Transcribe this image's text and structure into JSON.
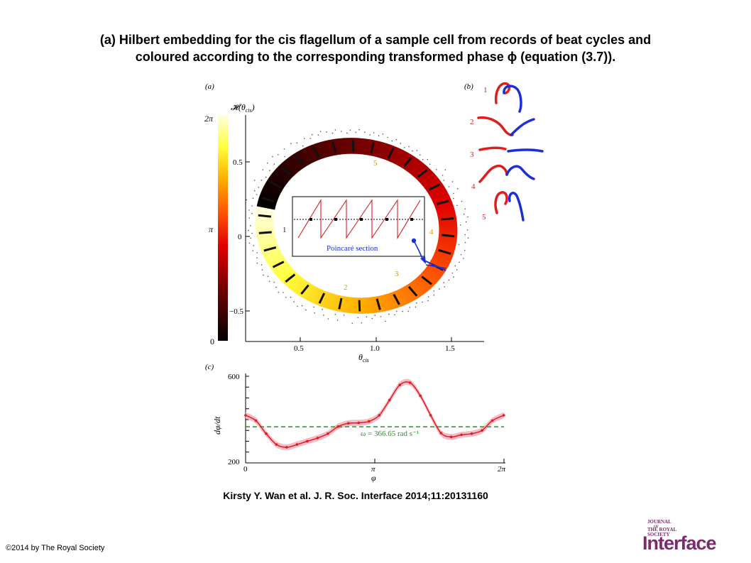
{
  "slide": {
    "title_line1": "(a) Hilbert embedding for the cis flagellum of a sample cell from records of beat cycles and",
    "title_line2": "coloured according to the corresponding transformed phase ϕ (equation (3.7)).",
    "citation": "Kirsty Y. Wan et al. J. R. Soc. Interface 2014;11:20131160",
    "copyright": "©2014 by The Royal Society"
  },
  "logo": {
    "line1": "JOURNAL",
    "line2": "OF",
    "line3": "THE ROYAL",
    "line4": "SOCIETY",
    "big": "Interface",
    "color": "#7b2a6e"
  },
  "panel_a": {
    "label": "(a)",
    "ylabel": "𝓗(θcis)",
    "ylabel_main": "𝓗(θ",
    "ylabel_sub": "cis",
    "ylabel_close": ")",
    "xlabel_main": "θ",
    "xlabel_sub": "cis",
    "yticks": [
      "0.5",
      "0",
      "−0.5"
    ],
    "xticks": [
      "0.5",
      "1.0",
      "1.5"
    ],
    "colorbar_ticks": [
      "2π",
      "π",
      "0"
    ],
    "segment_labels": [
      "1",
      "2",
      "3",
      "4",
      "5"
    ],
    "inset_label": "Poincaré section"
  },
  "panel_b": {
    "label": "(b)",
    "stroke_labels": [
      "1",
      "2",
      "3",
      "4",
      "5"
    ],
    "colors": {
      "trans": "#e11c1c",
      "cis": "#1a2fd8"
    }
  },
  "panel_c": {
    "label": "(c)",
    "ylabel": "dφ/dt",
    "xlabel": "φ",
    "yticks": [
      "600",
      "200"
    ],
    "xticks": [
      "0",
      "π",
      "2π"
    ],
    "omega_label": "ω = 366.65 rad s⁻¹",
    "chart_data": {
      "type": "line",
      "xlabel": "φ",
      "ylabel": "dφ/dt",
      "ylim": [
        200,
        600
      ],
      "xlim": [
        0,
        6.2832
      ],
      "x": [
        0.0,
        0.25,
        0.5,
        0.75,
        1.0,
        1.25,
        1.5,
        1.75,
        2.0,
        2.25,
        2.5,
        2.75,
        3.0,
        3.25,
        3.5,
        3.75,
        4.0,
        4.25,
        4.5,
        4.75,
        5.0,
        5.25,
        5.5,
        5.75,
        6.0,
        6.28
      ],
      "series": [
        {
          "values": [
            420,
            395,
            335,
            285,
            272,
            285,
            300,
            315,
            335,
            368,
            383,
            385,
            392,
            420,
            490,
            560,
            570,
            510,
            420,
            338,
            320,
            330,
            335,
            350,
            395,
            420
          ],
          "band_halfwidth": 14
        }
      ],
      "hline": {
        "value": 366.65,
        "color": "#1f9a1f",
        "label": "ω = 366.65 rad s⁻¹"
      },
      "line_color": "#e11c1c",
      "band_color": "#f4bcc8"
    }
  }
}
